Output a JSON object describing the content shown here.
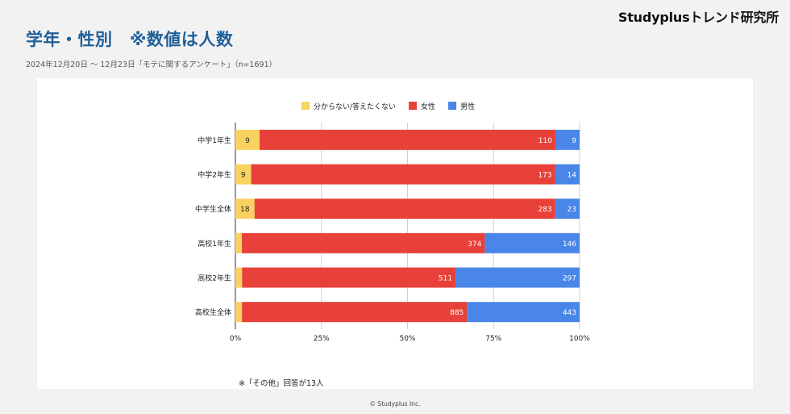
{
  "brand": "Studyplusトレンド研究所",
  "title": "学年・性別　※数値は人数",
  "subtitle": "2024年12月20日 〜 12月23日「モテに関するアンケート」（n=1691）",
  "footnote": "※「その他」回答が13人",
  "copyright": "© Studyplus Inc.",
  "colors": {
    "undecided": "#f9d25f",
    "female": "#e8413a",
    "male": "#4a86e8"
  },
  "chart_data": {
    "type": "bar",
    "orientation": "horizontal",
    "stacked": "percent",
    "categories": [
      "中学1年生",
      "中学2年生",
      "中学生全体",
      "高校1年生",
      "高校2年生",
      "高校生全体"
    ],
    "series": [
      {
        "name": "分からない/答えたくない",
        "values": [
          9,
          9,
          18,
          10,
          16,
          26
        ]
      },
      {
        "name": "女性",
        "values": [
          110,
          173,
          283,
          374,
          511,
          885
        ]
      },
      {
        "name": "男性",
        "values": [
          9,
          14,
          23,
          146,
          297,
          443
        ]
      }
    ],
    "x_ticks": [
      "0%",
      "25%",
      "50%",
      "75%",
      "100%"
    ],
    "xlim": [
      0,
      100
    ],
    "legend_position": "top",
    "grid": true
  }
}
